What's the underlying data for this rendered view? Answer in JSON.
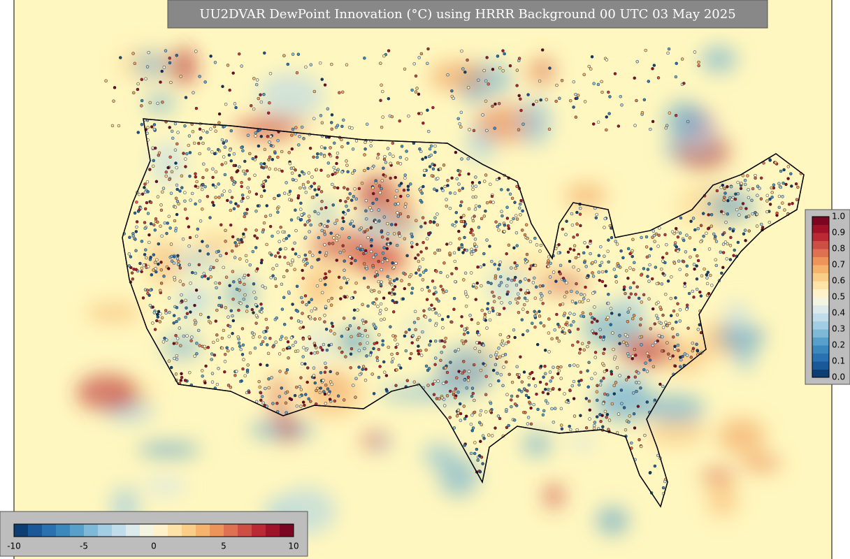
{
  "title": "UU2DVAR DewPoint Innovation (°C) using HRRR Background 00 UTC 03 May 2025",
  "horizontal_colorbar": {
    "tick_labels": [
      "-10",
      "-5",
      "0",
      "5",
      "10"
    ]
  },
  "vertical_colorbar": {
    "tick_labels": [
      "0.0",
      "0.1",
      "0.2",
      "0.3",
      "0.4",
      "0.5",
      "0.6",
      "0.7",
      "0.8",
      "0.9",
      "1.0"
    ]
  }
}
